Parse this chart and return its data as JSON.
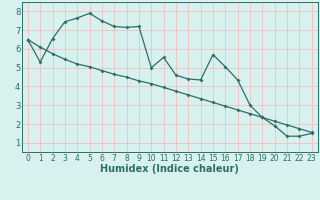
{
  "xlabel": "Humidex (Indice chaleur)",
  "xlim": [
    -0.5,
    23.5
  ],
  "ylim": [
    0.5,
    8.5
  ],
  "yticks": [
    1,
    2,
    3,
    4,
    5,
    6,
    7,
    8
  ],
  "xticks": [
    0,
    1,
    2,
    3,
    4,
    5,
    6,
    7,
    8,
    9,
    10,
    11,
    12,
    13,
    14,
    15,
    16,
    17,
    18,
    19,
    20,
    21,
    22,
    23
  ],
  "line1_x": [
    0,
    1,
    2,
    3,
    4,
    5,
    6,
    7,
    8,
    9,
    10,
    11,
    12,
    13,
    14,
    15,
    16,
    17,
    18,
    19,
    20,
    21,
    22,
    23
  ],
  "line1_y": [
    6.5,
    5.3,
    6.55,
    7.45,
    7.65,
    7.9,
    7.5,
    7.2,
    7.15,
    7.2,
    5.0,
    5.55,
    4.6,
    4.4,
    4.35,
    5.7,
    5.05,
    4.35,
    3.0,
    2.35,
    1.9,
    1.35,
    1.35,
    1.5
  ],
  "line2_x": [
    0,
    1,
    2,
    3,
    4,
    5,
    6,
    7,
    8,
    9,
    10,
    11,
    12,
    13,
    14,
    15,
    16,
    17,
    18,
    19,
    20,
    21,
    22,
    23
  ],
  "line2_y": [
    6.5,
    6.1,
    5.75,
    5.45,
    5.2,
    5.05,
    4.85,
    4.65,
    4.5,
    4.3,
    4.15,
    3.95,
    3.75,
    3.55,
    3.35,
    3.15,
    2.95,
    2.75,
    2.55,
    2.35,
    2.15,
    1.95,
    1.75,
    1.55
  ],
  "bg_color": "#d8f0ee",
  "line_color": "#2a7068",
  "grid_color": "#f5b8b8",
  "xlabel_fontsize": 7,
  "tick_fontsize": 5.5
}
